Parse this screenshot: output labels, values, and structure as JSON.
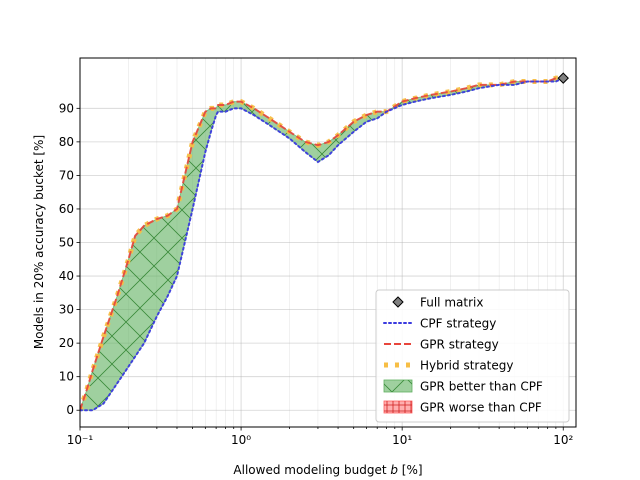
{
  "chart_data": {
    "type": "line",
    "xlabel": "Allowed modeling budget b [%]",
    "ylabel": "Models in 20% accuracy bucket [%]",
    "xscale": "log",
    "xlim": [
      0.1,
      120
    ],
    "ylim": [
      -5,
      105
    ],
    "grid": true,
    "legend_position": "bottom-right",
    "x_ticks": [
      {
        "value": 0.1,
        "label": "10⁻¹"
      },
      {
        "value": 1,
        "label": "10⁰"
      },
      {
        "value": 10,
        "label": "10¹"
      },
      {
        "value": 100,
        "label": "10²"
      }
    ],
    "y_ticks": [
      0,
      10,
      20,
      30,
      40,
      50,
      60,
      70,
      80,
      90
    ],
    "colors": {
      "cpf": "#3b3bdf",
      "gpr": "#e8453c",
      "hybrid": "#f7be45",
      "fill_better": "#5fb05f",
      "fill_worse": "#ff6060",
      "marker": "#808080"
    },
    "full_matrix": {
      "name": "Full matrix",
      "x": 100,
      "y": 99
    },
    "series": [
      {
        "name": "CPF strategy",
        "style": "dotted",
        "x": [
          0.1,
          0.11,
          0.12,
          0.14,
          0.17,
          0.2,
          0.25,
          0.3,
          0.35,
          0.4,
          0.5,
          0.6,
          0.65,
          0.7,
          0.72,
          0.75,
          0.8,
          0.9,
          1.0,
          1.2,
          1.5,
          2.0,
          2.5,
          3.0,
          3.5,
          4.0,
          5.0,
          6.0,
          7.0,
          8.0,
          10.0,
          12.0,
          15.0,
          20.0,
          25.0,
          30.0,
          40.0,
          50.0,
          60.0,
          70.0,
          80.0,
          90.0,
          100.0
        ],
        "values": [
          0,
          0,
          0,
          2,
          8,
          13,
          20,
          28,
          34,
          40,
          60,
          77,
          83,
          88,
          89,
          89,
          89,
          90,
          90,
          88,
          85,
          81,
          77,
          74,
          76,
          79,
          83,
          86,
          87,
          89,
          91,
          92,
          93,
          94,
          95,
          96,
          97,
          97,
          98,
          98,
          98,
          98,
          99
        ]
      },
      {
        "name": "GPR strategy",
        "style": "dashed",
        "x": [
          0.1,
          0.11,
          0.12,
          0.14,
          0.17,
          0.2,
          0.22,
          0.25,
          0.3,
          0.35,
          0.4,
          0.5,
          0.6,
          0.65,
          0.7,
          0.72,
          0.75,
          0.8,
          0.9,
          1.0,
          1.2,
          1.5,
          2.0,
          2.5,
          3.0,
          3.5,
          4.0,
          5.0,
          6.0,
          7.0,
          8.0,
          10.0,
          12.0,
          15.0,
          20.0,
          25.0,
          30.0,
          40.0,
          50.0,
          60.0,
          70.0,
          80.0,
          90.0,
          100.0
        ],
        "values": [
          0,
          6,
          12,
          22,
          34,
          45,
          52,
          55,
          57,
          58,
          60,
          80,
          89,
          90,
          90,
          91,
          91,
          91,
          92,
          92,
          90,
          87,
          83,
          80,
          79,
          80,
          82,
          86,
          88,
          89,
          89,
          92,
          93,
          94,
          95,
          96,
          97,
          97,
          98,
          98,
          98,
          98,
          99,
          99
        ]
      },
      {
        "name": "Hybrid strategy",
        "style": "dotted-thick",
        "x": [
          0.1,
          0.11,
          0.12,
          0.14,
          0.17,
          0.2,
          0.22,
          0.25,
          0.3,
          0.35,
          0.4,
          0.5,
          0.6,
          0.65,
          0.7,
          0.72,
          0.75,
          0.8,
          0.9,
          1.0,
          1.2,
          1.5,
          2.0,
          2.5,
          3.0,
          3.5,
          4.0,
          5.0,
          6.0,
          7.0,
          8.0,
          10.0,
          12.0,
          15.0,
          20.0,
          25.0,
          30.0,
          40.0,
          50.0,
          60.0,
          70.0,
          80.0,
          90.0,
          100.0
        ],
        "values": [
          0,
          6,
          12,
          22,
          34,
          45,
          52,
          55,
          57,
          58,
          60,
          80,
          89,
          90,
          90,
          91,
          91,
          91,
          92,
          92,
          90,
          87,
          83,
          80,
          79,
          80,
          82,
          86,
          88,
          89,
          89,
          92,
          93,
          94,
          95,
          96,
          97,
          97,
          98,
          98,
          98,
          98,
          99,
          99
        ]
      }
    ],
    "fills": [
      {
        "name": "GPR better than CPF",
        "between": [
          "CPF strategy",
          "GPR strategy"
        ],
        "hatch": "x"
      },
      {
        "name": "GPR worse than CPF",
        "between": [
          "GPR strategy",
          "CPF strategy"
        ],
        "hatch": "+"
      }
    ]
  }
}
